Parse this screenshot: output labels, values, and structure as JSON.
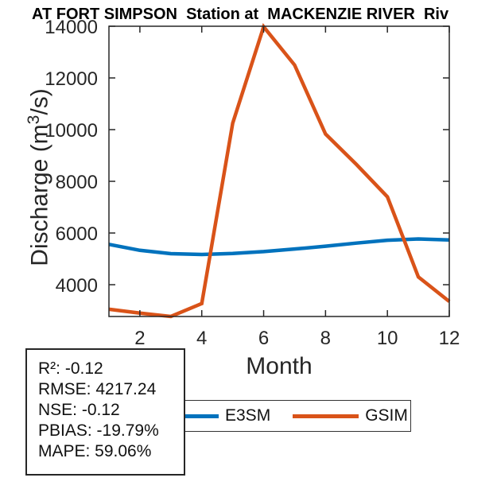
{
  "title": "AT FORT SIMPSON  Station at  MACKENZIE RIVER  Riv",
  "xlabel": "Month",
  "ylabel": {
    "pre": "Discharge (m",
    "sup": "3",
    "post": "/s)"
  },
  "stats": {
    "lines": [
      "R²: -0.12",
      "RMSE: 4217.24",
      "NSE: -0.12",
      "PBIAS: -19.79%",
      "MAPE: 59.06%"
    ]
  },
  "legend": {
    "items": [
      {
        "label": "E3SM",
        "color": "#0072BD"
      },
      {
        "label": "GSIM",
        "color": "#D95319"
      }
    ]
  },
  "colors": {
    "axis": "#262626",
    "tick_label": "#262626",
    "title": "#000000",
    "e3sm_blue": "#0072BD",
    "gsim_orange": "#D95319"
  },
  "chart_data": {
    "type": "line",
    "title": "AT FORT SIMPSON  Station at  MACKENZIE RIVER  Riv",
    "xlabel": "Month",
    "ylabel": "Discharge (m³/s)",
    "x": [
      1,
      2,
      3,
      4,
      5,
      6,
      7,
      8,
      9,
      10,
      11,
      12
    ],
    "series": [
      {
        "name": "E3SM",
        "color": "#0072BD",
        "values": [
          5560,
          5330,
          5200,
          5170,
          5210,
          5280,
          5380,
          5490,
          5610,
          5720,
          5770,
          5730
        ]
      },
      {
        "name": "GSIM",
        "color": "#D95319",
        "values": [
          3050,
          2900,
          2770,
          3270,
          10250,
          13980,
          12500,
          9830,
          8650,
          7400,
          4300,
          3350
        ]
      }
    ],
    "xlim": [
      1,
      12
    ],
    "ylim": [
      2770,
      14000
    ],
    "x_ticks": [
      2,
      4,
      6,
      8,
      10,
      12
    ],
    "y_ticks": [
      4000,
      6000,
      8000,
      10000,
      12000,
      14000
    ],
    "grid": false,
    "box": true,
    "legend_position": "south-outside-horizontal"
  }
}
